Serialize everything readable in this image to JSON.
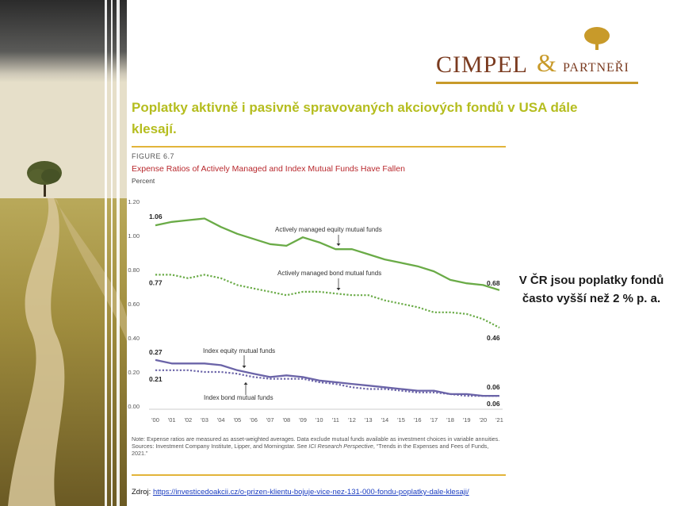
{
  "brand": {
    "logo_main": "CIMPEL",
    "logo_amp": "&",
    "logo_small": "PARTNEŘI",
    "colors": {
      "brand_brown": "#7a3a1f",
      "brand_gold": "#c89a2a",
      "title_green": "#b5bd1f"
    }
  },
  "slide": {
    "title": "Poplatky aktivně i pasivně spravovaných akciových fondů v USA dále klesají.",
    "side_note": "V ČR jsou poplatky fondů často vyšší než 2 % p. a.",
    "source_prefix": "Zdroj: ",
    "source_link": "https://investicedoakcii.cz/o-prizen-klientu-bojuje-vice-nez-131-000-fondu-poplatky-dale-klesaji/"
  },
  "chart_data": {
    "type": "line",
    "figure_label": "FIGURE 6.7",
    "title": "Expense Ratios of Actively Managed and Index Mutual Funds Have Fallen",
    "unit": "Percent",
    "x": [
      "'00",
      "'01",
      "'02",
      "'03",
      "'04",
      "'05",
      "'06",
      "'07",
      "'08",
      "'09",
      "'10",
      "'11",
      "'12",
      "'13",
      "'14",
      "'15",
      "'16",
      "'17",
      "'18",
      "'19",
      "'20",
      "'21"
    ],
    "ylim": [
      0,
      1.2
    ],
    "yticks": [
      "0.00",
      "0.20",
      "0.40",
      "0.60",
      "0.80",
      "1.00",
      "1.20"
    ],
    "grid": false,
    "series": [
      {
        "name": "Actively managed equity mutual funds",
        "style": "solid",
        "color": "#6aab47",
        "values": [
          1.06,
          1.08,
          1.09,
          1.1,
          1.05,
          1.01,
          0.98,
          0.95,
          0.94,
          0.99,
          0.96,
          0.92,
          0.92,
          0.89,
          0.86,
          0.84,
          0.82,
          0.79,
          0.74,
          0.72,
          0.71,
          0.68
        ],
        "start_label": "1.06",
        "end_label": "0.68"
      },
      {
        "name": "Actively managed bond mutual funds",
        "style": "dotted",
        "color": "#6aab47",
        "values": [
          0.77,
          0.77,
          0.75,
          0.77,
          0.75,
          0.71,
          0.69,
          0.67,
          0.65,
          0.67,
          0.67,
          0.66,
          0.65,
          0.65,
          0.62,
          0.6,
          0.58,
          0.55,
          0.55,
          0.54,
          0.51,
          0.46
        ],
        "start_label": "0.77",
        "end_label": "0.46"
      },
      {
        "name": "Index equity mutual funds",
        "style": "solid",
        "color": "#6b64a8",
        "values": [
          0.27,
          0.25,
          0.25,
          0.25,
          0.24,
          0.21,
          0.19,
          0.17,
          0.18,
          0.17,
          0.15,
          0.14,
          0.13,
          0.12,
          0.11,
          0.1,
          0.09,
          0.09,
          0.07,
          0.07,
          0.06,
          0.06
        ],
        "start_label": "0.27",
        "end_label": "0.06"
      },
      {
        "name": "Index bond mutual funds",
        "style": "dotted",
        "color": "#6b64a8",
        "values": [
          0.21,
          0.21,
          0.21,
          0.2,
          0.2,
          0.19,
          0.17,
          0.16,
          0.16,
          0.16,
          0.14,
          0.13,
          0.11,
          0.1,
          0.1,
          0.09,
          0.08,
          0.08,
          0.07,
          0.06,
          0.06,
          0.06
        ],
        "start_label": "0.21",
        "end_label": "0.06"
      }
    ],
    "note": "Note: Expense ratios are measured as asset-weighted averages. Data exclude mutual funds available as investment choices in variable annuities.",
    "sources_prefix": "Sources: Investment Company Institute, Lipper, and Morningstar. See ",
    "sources_italic": "ICI Research Perspective",
    "sources_suffix": ", “Trends in the Expenses and Fees of Funds, 2021.”"
  }
}
